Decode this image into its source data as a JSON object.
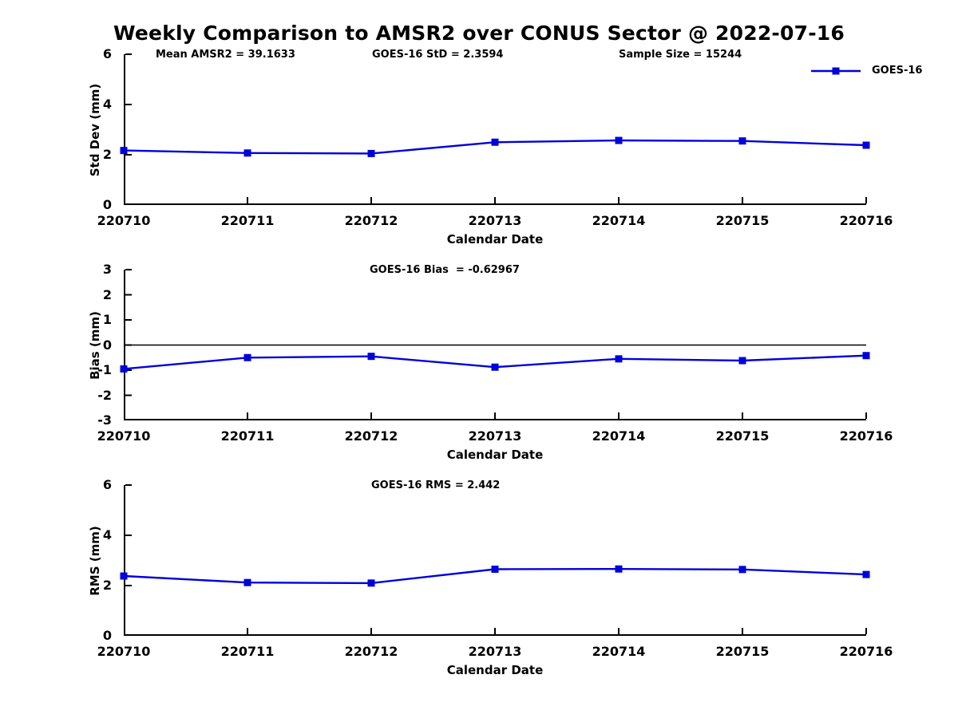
{
  "title": "Weekly Comparison to AMSR2 over CONUS Sector @ 2022-07-16",
  "colors": {
    "line": "#0000dd",
    "axis": "#000000",
    "background": "#ffffff"
  },
  "chart_data": [
    {
      "type": "line",
      "x": [
        "220710",
        "220711",
        "220712",
        "220713",
        "220714",
        "220715",
        "220716"
      ],
      "series": [
        {
          "name": "GOES-16",
          "values": [
            2.17,
            2.07,
            2.05,
            2.5,
            2.57,
            2.55,
            2.38
          ],
          "color": "#0000dd",
          "marker": "square"
        }
      ],
      "xlabel": "Calendar Date",
      "ylabel": "Std Dev (mm)",
      "ylim": [
        0,
        6
      ],
      "yticks": [
        0,
        2,
        4,
        6
      ],
      "grid": false,
      "annotations": [
        "Mean AMSR2 = 39.1633",
        "GOES-16 StD = 2.3594",
        "Sample Size = 15244"
      ],
      "legend": {
        "entries": [
          "GOES-16"
        ],
        "position": "top-right"
      }
    },
    {
      "type": "line",
      "x": [
        "220710",
        "220711",
        "220712",
        "220713",
        "220714",
        "220715",
        "220716"
      ],
      "series": [
        {
          "name": "GOES-16",
          "values": [
            -0.95,
            -0.5,
            -0.45,
            -0.88,
            -0.55,
            -0.62,
            -0.42
          ],
          "color": "#0000dd",
          "marker": "square"
        }
      ],
      "xlabel": "Calendar Date",
      "ylabel": "Bias (mm)",
      "ylim": [
        -3,
        3
      ],
      "yticks": [
        3,
        2,
        1,
        0,
        -1,
        -2,
        -3
      ],
      "grid": false,
      "zero_line": true,
      "annotations": [
        "GOES-16 Bias  = -0.62967"
      ]
    },
    {
      "type": "line",
      "x": [
        "220710",
        "220711",
        "220712",
        "220713",
        "220714",
        "220715",
        "220716"
      ],
      "series": [
        {
          "name": "GOES-16",
          "values": [
            2.38,
            2.12,
            2.1,
            2.65,
            2.66,
            2.64,
            2.44
          ],
          "color": "#0000dd",
          "marker": "square"
        }
      ],
      "xlabel": "Calendar Date",
      "ylabel": "RMS (mm)",
      "ylim": [
        0,
        6
      ],
      "yticks": [
        0,
        2,
        4,
        6
      ],
      "grid": false,
      "annotations": [
        "GOES-16 RMS = 2.442"
      ]
    }
  ]
}
